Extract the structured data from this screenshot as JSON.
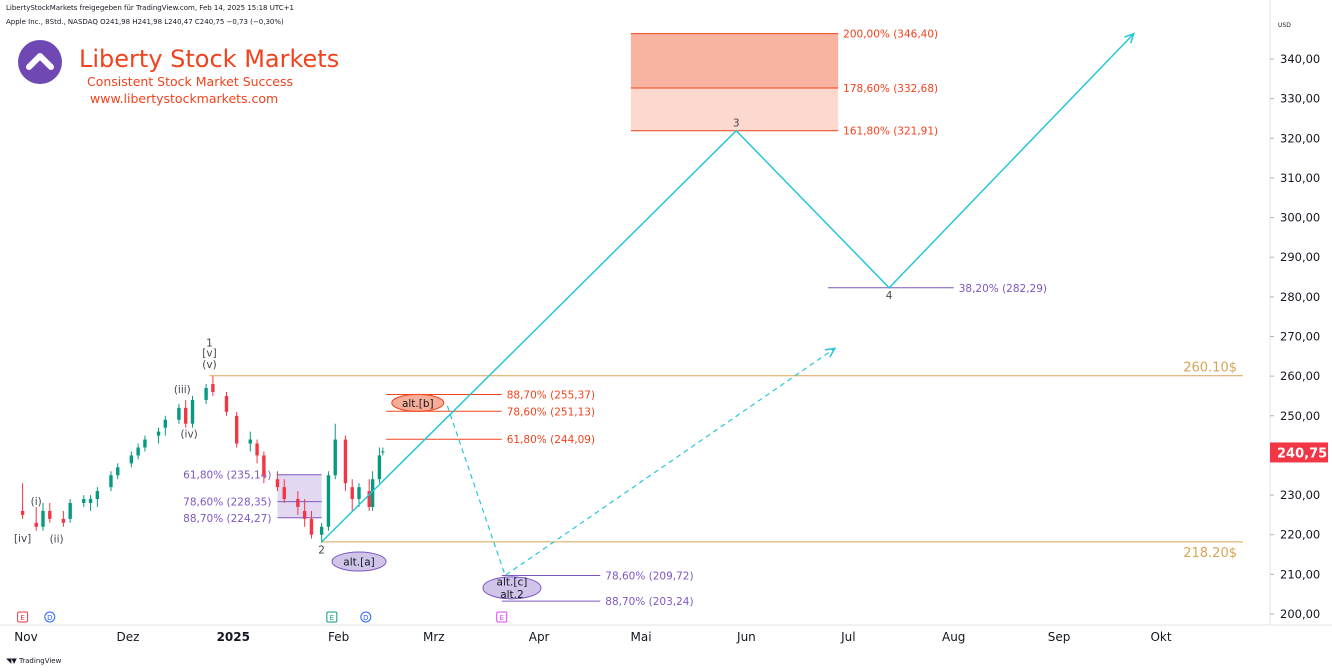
{
  "header": {
    "line1": "LibertyStockMarkets freigegeben für TradingView.com, Feb 14, 2025 15:18 UTC+1",
    "line2": "Apple Inc., 8Std., NASDAQ O241,98 H241,98 L240,47 C240,75 −0,73 (−0,30%)"
  },
  "brand": {
    "title": "Liberty Stock Markets",
    "tagline": "Consistent Stock Market Success",
    "url": "www.libertystockmarkets.com"
  },
  "footer": "TradingView",
  "chart_data": {
    "type": "line",
    "currency": "USD",
    "ylim": [
      195,
      350
    ],
    "yticks": [
      {
        "v": 200,
        "l": "200,00"
      },
      {
        "v": 210,
        "l": "210,00"
      },
      {
        "v": 220,
        "l": "220,00"
      },
      {
        "v": 230,
        "l": "230,00"
      },
      {
        "v": 240,
        "l": "240,00"
      },
      {
        "v": 250,
        "l": "250,00"
      },
      {
        "v": 260,
        "l": "260,00"
      },
      {
        "v": 270,
        "l": "270,00"
      },
      {
        "v": 280,
        "l": "280,00"
      },
      {
        "v": 290,
        "l": "290,00"
      },
      {
        "v": 300,
        "l": "300,00"
      },
      {
        "v": 310,
        "l": "310,00"
      },
      {
        "v": 320,
        "l": "320,00"
      },
      {
        "v": 330,
        "l": "330,00"
      },
      {
        "v": 340,
        "l": "340,00"
      }
    ],
    "xticks": [
      {
        "d": "2024-11-01",
        "l": "Nov"
      },
      {
        "d": "2024-12-01",
        "l": "Dez"
      },
      {
        "d": "2025-01-01",
        "l": "2025",
        "bold": true
      },
      {
        "d": "2025-02-01",
        "l": "Feb"
      },
      {
        "d": "2025-03-01",
        "l": "Mrz"
      },
      {
        "d": "2025-04-01",
        "l": "Apr"
      },
      {
        "d": "2025-05-01",
        "l": "Mai"
      },
      {
        "d": "2025-06-01",
        "l": "Jun"
      },
      {
        "d": "2025-07-01",
        "l": "Jul"
      },
      {
        "d": "2025-08-01",
        "l": "Aug"
      },
      {
        "d": "2025-09-01",
        "l": "Sep"
      },
      {
        "d": "2025-10-01",
        "l": "Okt"
      }
    ],
    "last_price": {
      "value": 240.75,
      "label": "240,75",
      "color": "#f23645"
    },
    "colors": {
      "up": "#089981",
      "down": "#f23645",
      "projection": "#26c6da",
      "orange": "#f0431d",
      "purple": "#7e57c2",
      "tan": "#d8a456"
    },
    "candles": [
      [
        "2024-10-31",
        226,
        233,
        224,
        225
      ],
      [
        "2024-11-04",
        223,
        227,
        221,
        222
      ],
      [
        "2024-11-06",
        222,
        228,
        221,
        226
      ],
      [
        "2024-11-08",
        226,
        228,
        223,
        224
      ],
      [
        "2024-11-12",
        224,
        226,
        222,
        223
      ],
      [
        "2024-11-14",
        224,
        229,
        223,
        228
      ],
      [
        "2024-11-18",
        228,
        230,
        227,
        229
      ],
      [
        "2024-11-20",
        228,
        230,
        226,
        229
      ],
      [
        "2024-11-22",
        229,
        232,
        227,
        231
      ],
      [
        "2024-11-26",
        232,
        236,
        231,
        235
      ],
      [
        "2024-11-28",
        235,
        238,
        234,
        237
      ],
      [
        "2024-12-02",
        238,
        241,
        237,
        240
      ],
      [
        "2024-12-04",
        240,
        243,
        239,
        242
      ],
      [
        "2024-12-06",
        242,
        245,
        241,
        244
      ],
      [
        "2024-12-10",
        245,
        247,
        243,
        246
      ],
      [
        "2024-12-12",
        247,
        250,
        245,
        249
      ],
      [
        "2024-12-16",
        249,
        253,
        248,
        252
      ],
      [
        "2024-12-18",
        252,
        254,
        247,
        248
      ],
      [
        "2024-12-20",
        248,
        255,
        247,
        254
      ],
      [
        "2024-12-24",
        254,
        258,
        253,
        257
      ],
      [
        "2024-12-26",
        258,
        260,
        255,
        256
      ],
      [
        "2024-12-30",
        255,
        256,
        250,
        251
      ],
      [
        "2025-01-02",
        250,
        251,
        242,
        243
      ],
      [
        "2025-01-06",
        243,
        246,
        241,
        244
      ],
      [
        "2025-01-08",
        243,
        244,
        238,
        240
      ],
      [
        "2025-01-10",
        240,
        241,
        233,
        235
      ],
      [
        "2025-01-14",
        234,
        236,
        231,
        232
      ],
      [
        "2025-01-16",
        232,
        234,
        228,
        229
      ],
      [
        "2025-01-20",
        229,
        231,
        225,
        227
      ],
      [
        "2025-01-22",
        226,
        229,
        222,
        224
      ],
      [
        "2025-01-24",
        224,
        226,
        219,
        220
      ],
      [
        "2025-01-27",
        220,
        223,
        218,
        222
      ],
      [
        "2025-01-29",
        222,
        236,
        221,
        235
      ],
      [
        "2025-01-31",
        235,
        248,
        234,
        244
      ],
      [
        "2025-02-03",
        244,
        245,
        231,
        233
      ],
      [
        "2025-02-05",
        232,
        234,
        226,
        229
      ],
      [
        "2025-02-07",
        229,
        233,
        227,
        232
      ],
      [
        "2025-02-10",
        231,
        234,
        226,
        227
      ],
      [
        "2025-02-11",
        227,
        236,
        226,
        234
      ],
      [
        "2025-02-13",
        234,
        242,
        233,
        240
      ],
      [
        "2025-02-14",
        241,
        242,
        240,
        241
      ]
    ],
    "wave_labels": [
      {
        "d": "2024-11-04",
        "v": 227.5,
        "t": "(i)"
      },
      {
        "d": "2024-11-10",
        "v": 218,
        "t": "(ii)"
      },
      {
        "d": "2024-10-31",
        "v": 218.2,
        "t": "[iv]"
      },
      {
        "d": "2024-12-17",
        "v": 255.8,
        "t": "(iii)"
      },
      {
        "d": "2024-12-19",
        "v": 244.5,
        "t": "(iv)"
      },
      {
        "d": "2024-12-25",
        "v": 262,
        "t": "(v)"
      },
      {
        "d": "2024-12-25",
        "v": 265,
        "t": "[v]"
      },
      {
        "d": "2024-12-25",
        "v": 267.5,
        "t": "1"
      },
      {
        "d": "2025-01-27",
        "v": 215.2,
        "t": "2"
      },
      {
        "d": "2025-05-29",
        "v": 323,
        "t": "3"
      },
      {
        "d": "2025-07-13",
        "v": 279.5,
        "t": "4"
      }
    ],
    "fib_levels": [
      {
        "label": "200,00% (346,40)",
        "v": 346.4,
        "from": "2025-04-28",
        "to": "2025-06-28",
        "color": "#f0431d"
      },
      {
        "label": "178,60% (332,68)",
        "v": 332.68,
        "from": "2025-04-28",
        "to": "2025-06-28",
        "color": "#f0431d"
      },
      {
        "label": "161,80% (321,91)",
        "v": 321.91,
        "from": "2025-04-28",
        "to": "2025-06-28",
        "color": "#f0431d"
      },
      {
        "label": "38,20% (282,29)",
        "v": 282.29,
        "from": "2025-06-25",
        "to": "2025-08-01",
        "color": "#7e57c2"
      },
      {
        "label": "88,70% (255,37)",
        "v": 255.37,
        "from": "2025-02-15",
        "to": "2025-03-21",
        "color": "#f0431d"
      },
      {
        "label": "78,60% (251,13)",
        "v": 251.13,
        "from": "2025-02-15",
        "to": "2025-03-21",
        "color": "#f0431d"
      },
      {
        "label": "61,80% (244,09)",
        "v": 244.09,
        "from": "2025-02-15",
        "to": "2025-03-21",
        "color": "#f0431d"
      },
      {
        "label": "61,80% (235,14)",
        "v": 235.14,
        "from": "2025-01-14",
        "to": "2025-01-27",
        "color": "#7e57c2"
      },
      {
        "label": "78,60% (228,35)",
        "v": 228.35,
        "from": "2025-01-14",
        "to": "2025-01-27",
        "color": "#7e57c2"
      },
      {
        "label": "88,70% (224,27)",
        "v": 224.27,
        "from": "2025-01-14",
        "to": "2025-01-27",
        "color": "#7e57c2"
      },
      {
        "label": "78,60% (209,72)",
        "v": 209.72,
        "from": "2025-03-21",
        "to": "2025-04-19",
        "color": "#7e57c2"
      },
      {
        "label": "88,70% (203,24)",
        "v": 203.24,
        "from": "2025-03-21",
        "to": "2025-04-19",
        "color": "#7e57c2"
      }
    ],
    "horizontal_levels": [
      {
        "label": "260.10$",
        "v": 260.1,
        "from": "2024-12-25",
        "color": "#d8a456"
      },
      {
        "label": "218.20$",
        "v": 218.2,
        "from": "2025-01-27",
        "color": "#d8a456"
      }
    ],
    "projection_main": [
      [
        "2025-01-27",
        218.2
      ],
      [
        "2025-05-29",
        321.91
      ],
      [
        "2025-07-13",
        282.29
      ],
      [
        "2025-09-23",
        346.4
      ]
    ],
    "projection_alt": [
      [
        "2025-03-05",
        252.5
      ],
      [
        "2025-03-22",
        209.72
      ],
      [
        "2025-06-27",
        267
      ]
    ],
    "alt_labels": [
      {
        "t": "alt.[b]",
        "d": "2025-03-01",
        "v": 253,
        "color": "#f0431d"
      },
      {
        "t": "alt.[a]",
        "d": "2025-02-07",
        "v": 214.5,
        "color": "#7e57c2"
      },
      {
        "t": "alt.[c]",
        "d": "2025-03-24",
        "v": 208,
        "color": "#7e57c2"
      },
      {
        "t": "alt.2",
        "d": "2025-03-24",
        "v": 205,
        "color": "#7e57c2"
      }
    ],
    "event_markers": [
      {
        "d": "2024-10-31",
        "t": "E",
        "color": "#f23645"
      },
      {
        "d": "2024-11-08",
        "t": "D",
        "color": "#2962ff"
      },
      {
        "d": "2025-01-30",
        "t": "E",
        "color": "#089981"
      },
      {
        "d": "2025-02-09",
        "t": "D",
        "color": "#2962ff"
      },
      {
        "d": "2025-03-21",
        "t": "E",
        "color": "#e040fb"
      }
    ]
  }
}
